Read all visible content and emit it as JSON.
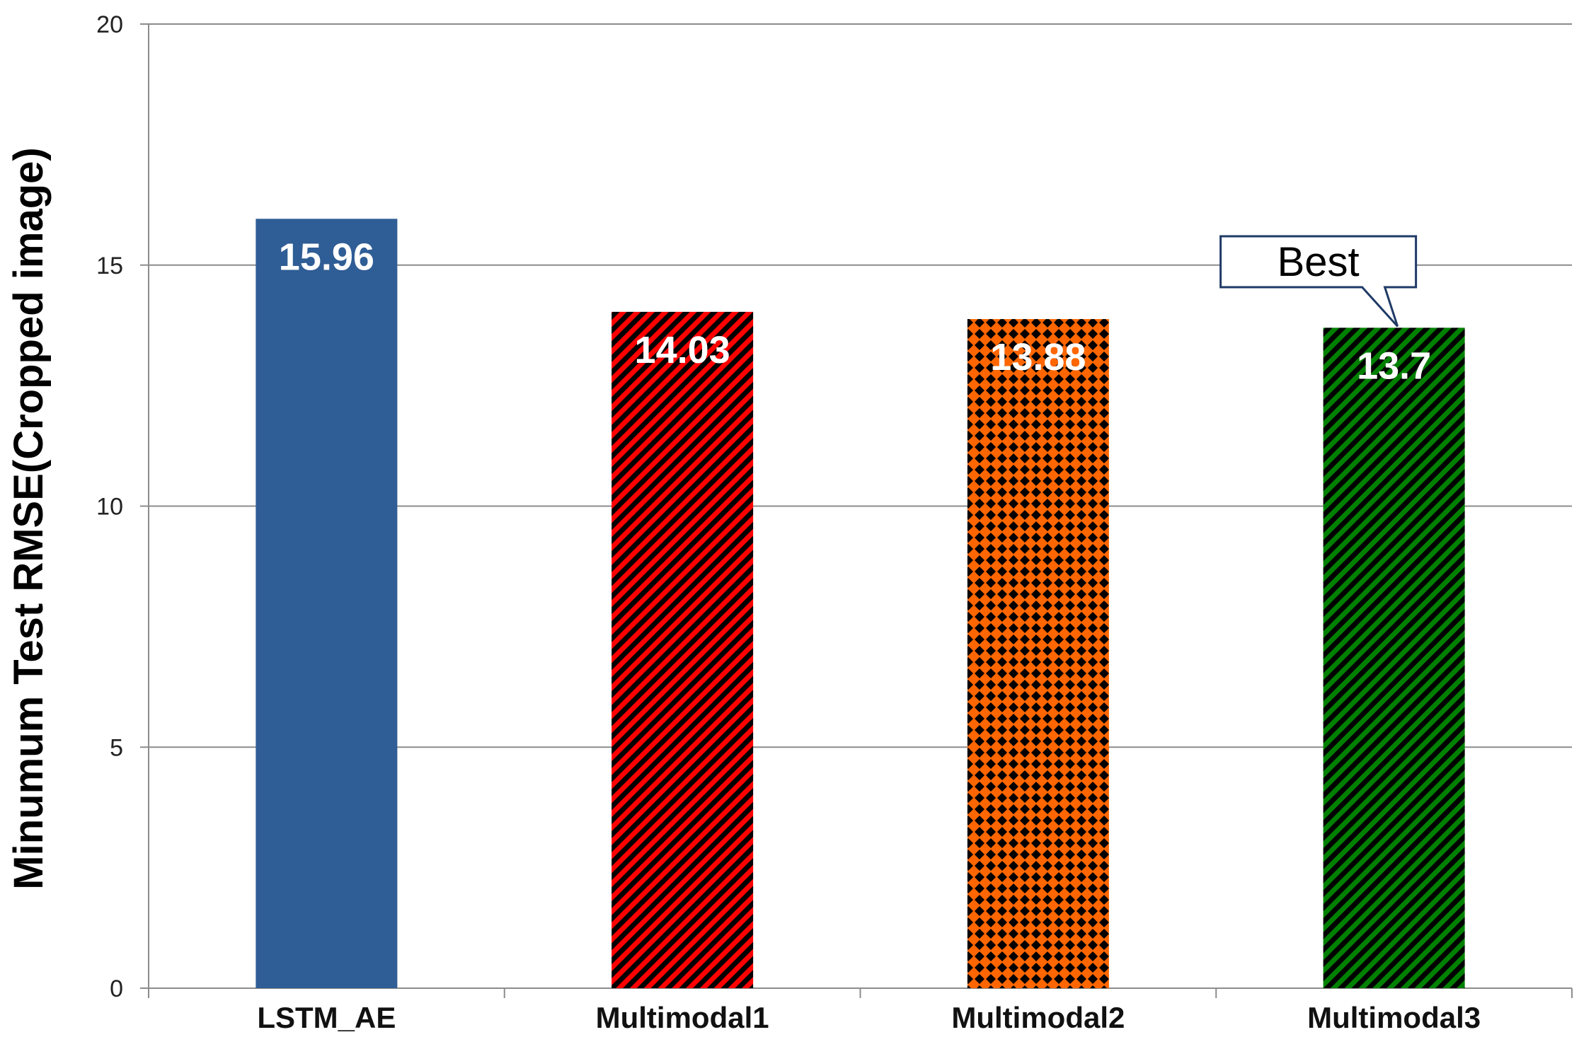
{
  "chart_data": {
    "type": "bar",
    "title": "",
    "xlabel": "",
    "ylabel": "Minumum  Test RMSE(Cropped image)",
    "categories": [
      "LSTM_AE",
      "Multimodal1",
      "Multimodal2",
      "Multimodal3"
    ],
    "values": [
      15.96,
      14.03,
      13.88,
      13.7
    ],
    "data_labels": [
      "15.96",
      "14.03",
      "13.88",
      "13.7"
    ],
    "ylim": [
      0,
      20
    ],
    "yticks": [
      0,
      5,
      10,
      15,
      20
    ],
    "ytick_labels": [
      "0",
      "5",
      "10",
      "15",
      "20"
    ],
    "grid": true,
    "legend": "none",
    "bar_styles": [
      {
        "pattern": "solid",
        "color": "#2f5d95",
        "accent": "#2f5d95"
      },
      {
        "pattern": "diagonal-stripes",
        "color": "#ff0000",
        "accent": "#000000"
      },
      {
        "pattern": "diamond-checker",
        "color": "#ff6600",
        "accent": "#000000"
      },
      {
        "pattern": "diagonal-stripes",
        "color": "#008000",
        "accent": "#000000"
      }
    ],
    "annotation": {
      "text": "Best",
      "category": "Multimodal3"
    }
  }
}
